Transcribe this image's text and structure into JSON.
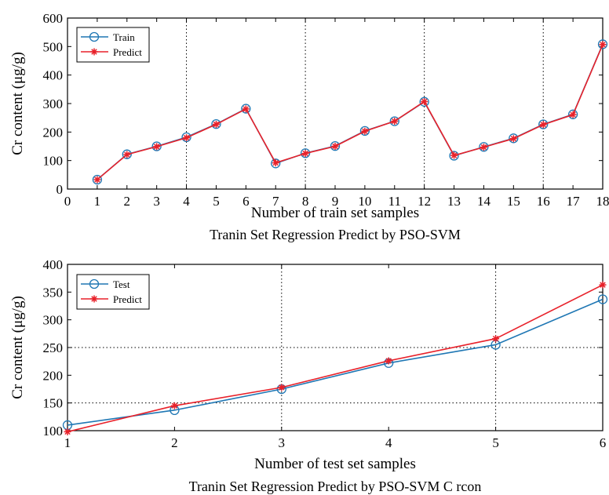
{
  "chart_data": [
    {
      "type": "line",
      "title": "Tranin Set Regression Predict by PSO-SVM",
      "xlabel": "Number of train set samples",
      "ylabel": "Cr content (μg/g)",
      "xlim": [
        0,
        18
      ],
      "ylim": [
        0,
        600
      ],
      "xticks": [
        0,
        1,
        2,
        3,
        4,
        5,
        6,
        7,
        8,
        9,
        10,
        11,
        12,
        13,
        14,
        15,
        16,
        17,
        18
      ],
      "yticks": [
        0,
        100,
        200,
        300,
        400,
        500,
        600
      ],
      "grid": "dotted vertical lines at x = 4, 8, 12, 16",
      "legend_position": "top-left",
      "x": [
        1,
        2,
        3,
        4,
        5,
        6,
        7,
        8,
        9,
        10,
        11,
        12,
        13,
        14,
        15,
        16,
        17,
        18
      ],
      "series": [
        {
          "name": "Train",
          "color": "#1f77b4",
          "marker": "circle",
          "values": [
            33,
            122,
            150,
            182,
            228,
            282,
            90,
            126,
            151,
            204,
            238,
            306,
            117,
            148,
            178,
            227,
            262,
            508
          ]
        },
        {
          "name": "Predict",
          "color": "#e8212a",
          "marker": "star",
          "values": [
            33,
            121,
            149,
            180,
            227,
            281,
            92,
            125,
            150,
            203,
            238,
            307,
            118,
            147,
            177,
            226,
            261,
            507
          ]
        }
      ]
    },
    {
      "type": "line",
      "title": "Tranin Set Regression Predict by PSO-SVM C rcon",
      "xlabel": "Number of test set samples",
      "ylabel": "Cr content (μg/g)",
      "xlim": [
        1,
        6
      ],
      "ylim": [
        100,
        400
      ],
      "xticks": [
        1,
        2,
        3,
        4,
        5,
        6
      ],
      "yticks": [
        100,
        150,
        200,
        250,
        300,
        350,
        400
      ],
      "grid": "dotted lines at x = 3, 5 and y = 150, 250",
      "legend_position": "top-left",
      "x": [
        1,
        2,
        3,
        4,
        5,
        6
      ],
      "series": [
        {
          "name": "Test",
          "color": "#1f77b4",
          "marker": "circle",
          "values": [
            110,
            137,
            175,
            222,
            255,
            337
          ]
        },
        {
          "name": "Predict",
          "color": "#e8212a",
          "marker": "star",
          "values": [
            98,
            145,
            178,
            226,
            266,
            363
          ]
        }
      ]
    }
  ]
}
